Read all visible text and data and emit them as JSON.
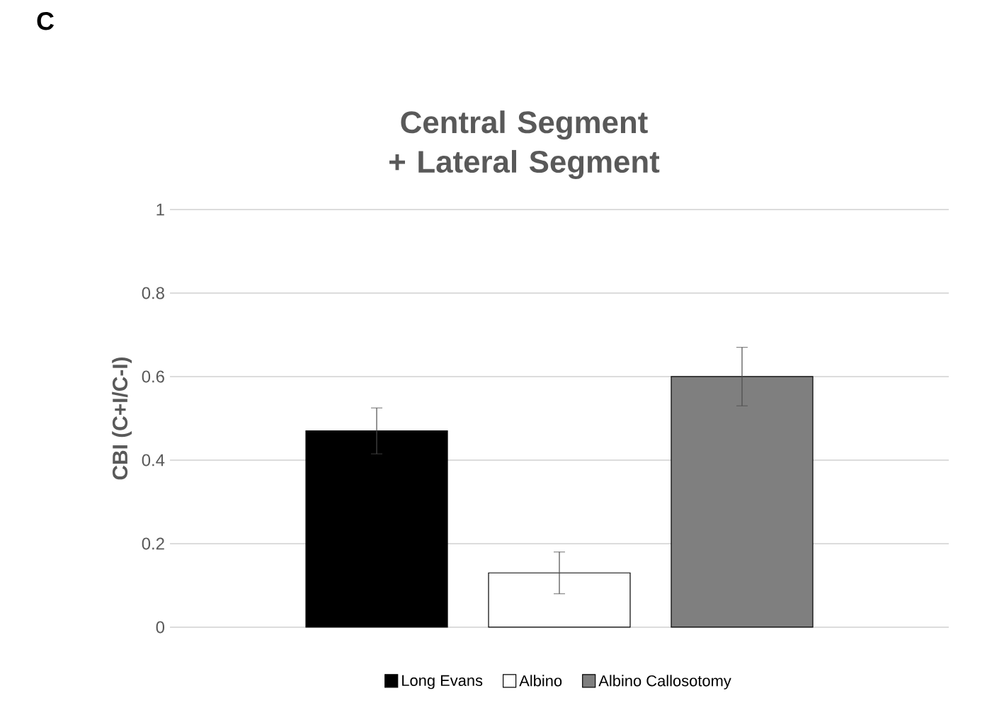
{
  "chart_data": {
    "type": "bar",
    "title": "Central Segment + Lateral Segment",
    "ylabel": "CBI (C+I/C-I)",
    "annotations": [
      "C"
    ],
    "categories": [
      null
    ],
    "series": [
      {
        "name": "Long Evans",
        "color": "#000000",
        "values": [
          0.47
        ],
        "errors": [
          0.055
        ]
      },
      {
        "name": "Albino",
        "color": "#ffffff",
        "values": [
          0.13
        ],
        "errors": [
          0.05
        ]
      },
      {
        "name": "Albino Callosotomy",
        "color": "#7f7f7f",
        "values": [
          0.6
        ],
        "errors": [
          0.07
        ]
      }
    ],
    "ylim": [
      0,
      1
    ],
    "yticks": [
      0,
      0.2,
      0.4,
      0.6,
      0.8,
      1
    ],
    "grid": "y",
    "legend": "bottom",
    "tick_labels": "y"
  }
}
